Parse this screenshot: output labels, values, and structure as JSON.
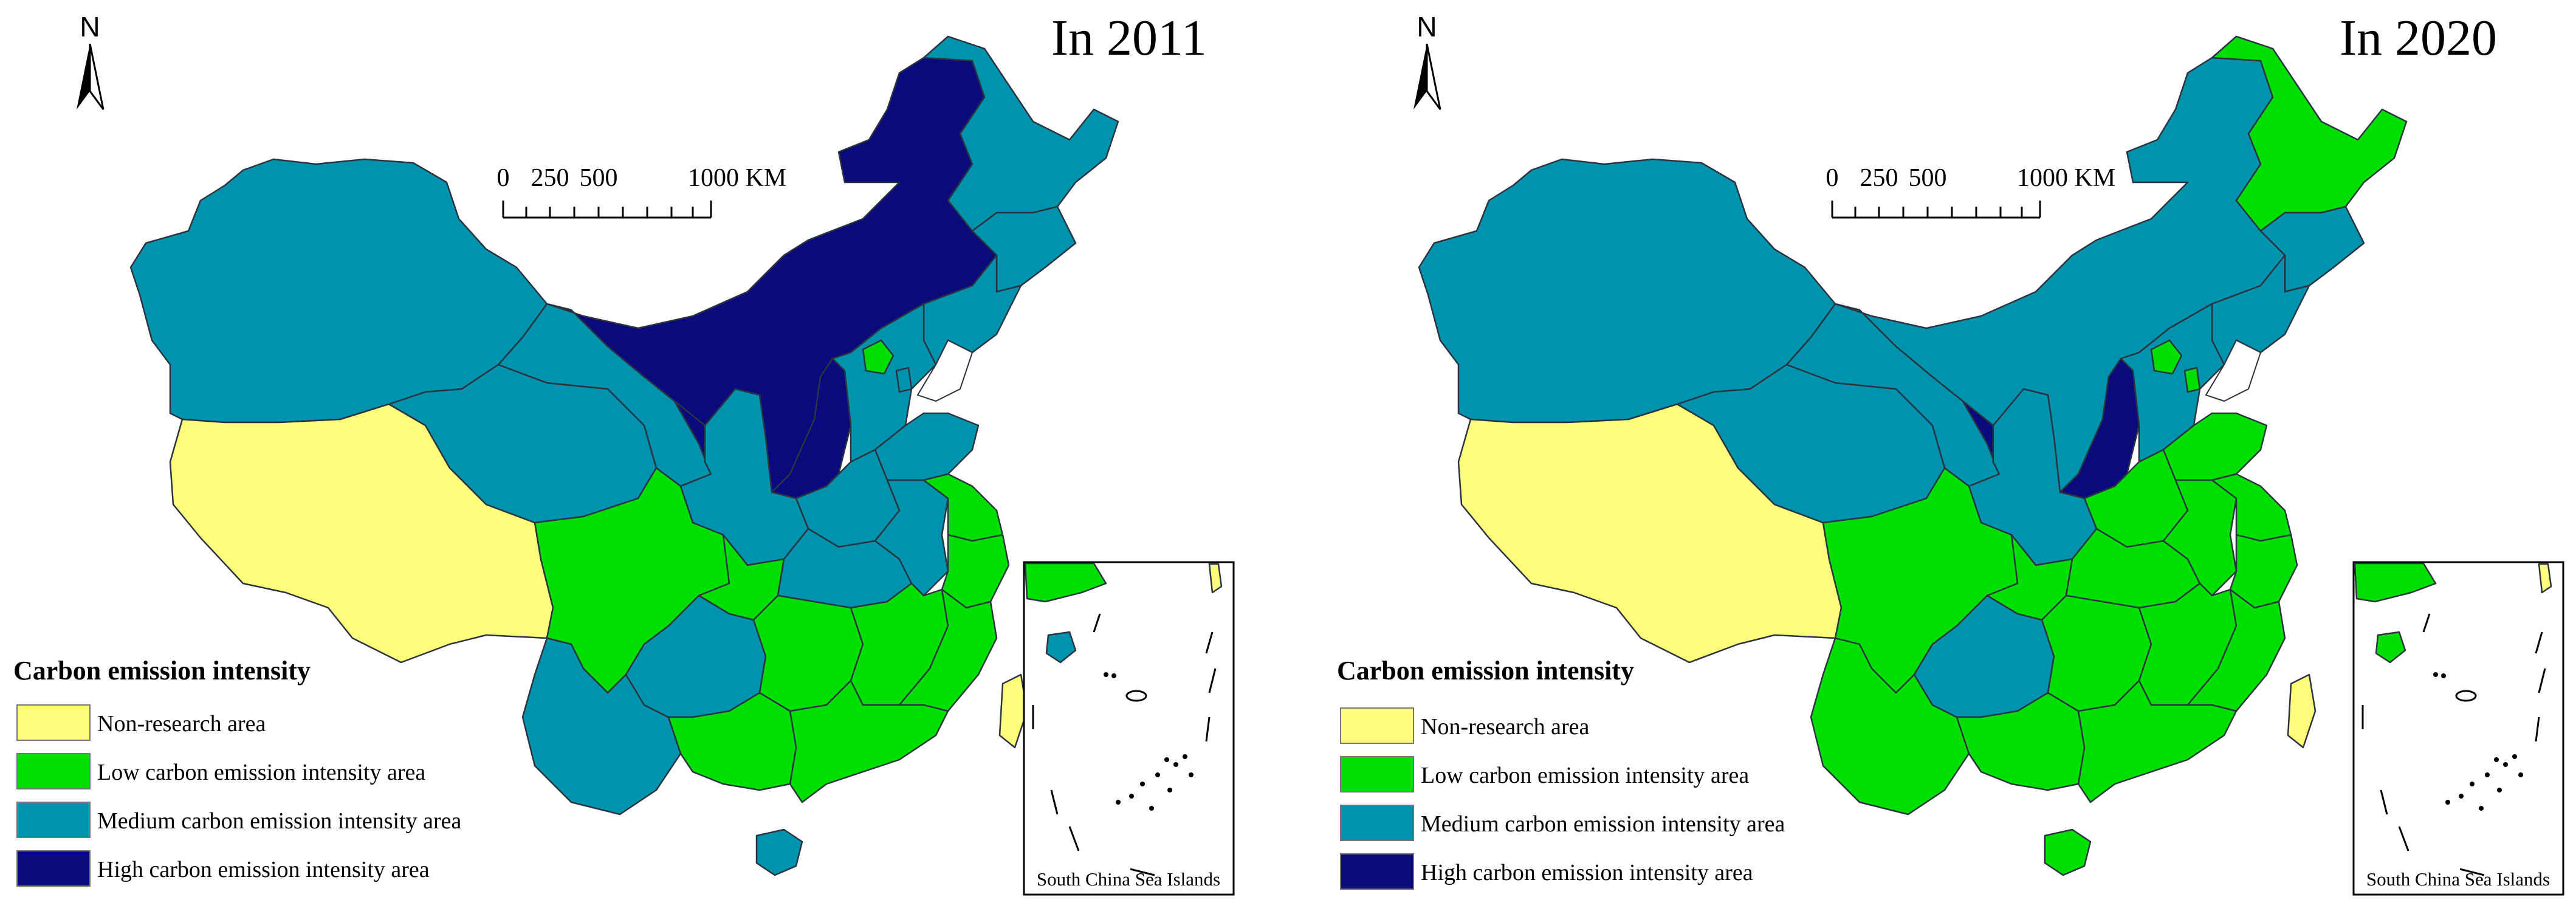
{
  "maps": [
    {
      "title": "In 2011",
      "north_label": "N",
      "scale": {
        "ticks": [
          "0",
          "250",
          "500",
          "1000 KM"
        ]
      },
      "legend": {
        "title": "Carbon emission intensity",
        "items": [
          {
            "label": "Non-research area",
            "color": "#fefe7a"
          },
          {
            "label": "Low carbon emission intensity area",
            "color": "#00e000"
          },
          {
            "label": "Medium carbon emission intensity area",
            "color": "#0093ae"
          },
          {
            "label": "High carbon emission intensity area",
            "color": "#0a0a7c"
          }
        ]
      },
      "inset_caption": "South China Sea Islands",
      "regions": {
        "xinjiang": "medium",
        "tibet": "none",
        "qinghai": "medium",
        "gansu": "medium",
        "inner_mongolia": "high",
        "ningxia": "high",
        "shanxi": "high",
        "heilongjiang": "medium",
        "jilin": "medium",
        "liaoning": "medium",
        "hebei": "medium",
        "beijing": "low",
        "tianjin": "medium",
        "shandong": "medium",
        "henan": "medium",
        "shaanxi": "medium",
        "sichuan": "low",
        "chongqing": "low",
        "yunnan": "medium",
        "guizhou": "medium",
        "hubei": "medium",
        "anhui": "medium",
        "jiangsu": "low",
        "zhejiang": "low",
        "hunan": "low",
        "jiangxi": "low",
        "fujian": "low",
        "guangdong": "low",
        "guangxi": "low",
        "hainan": "medium",
        "taiwan": "none"
      }
    },
    {
      "title": "In 2020",
      "north_label": "N",
      "scale": {
        "ticks": [
          "0",
          "250",
          "500",
          "1000 KM"
        ]
      },
      "legend": {
        "title": "Carbon emission intensity",
        "items": [
          {
            "label": "Non-research area",
            "color": "#fefe7a"
          },
          {
            "label": "Low carbon emission intensity area",
            "color": "#00e000"
          },
          {
            "label": "Medium carbon emission intensity area",
            "color": "#0093ae"
          },
          {
            "label": "High carbon emission intensity area",
            "color": "#0a0a7c"
          }
        ]
      },
      "inset_caption": "South China Sea Islands",
      "regions": {
        "xinjiang": "medium",
        "tibet": "none",
        "qinghai": "medium",
        "gansu": "medium",
        "inner_mongolia": "medium",
        "ningxia": "high",
        "shanxi": "high",
        "heilongjiang": "low",
        "jilin": "medium",
        "liaoning": "medium",
        "hebei": "medium",
        "beijing": "low",
        "tianjin": "low",
        "shandong": "low",
        "henan": "low",
        "shaanxi": "medium",
        "sichuan": "low",
        "chongqing": "low",
        "yunnan": "low",
        "guizhou": "medium",
        "hubei": "low",
        "anhui": "low",
        "jiangsu": "low",
        "zhejiang": "low",
        "hunan": "low",
        "jiangxi": "low",
        "fujian": "low",
        "guangdong": "low",
        "guangxi": "low",
        "hainan": "low",
        "taiwan": "none"
      }
    }
  ]
}
